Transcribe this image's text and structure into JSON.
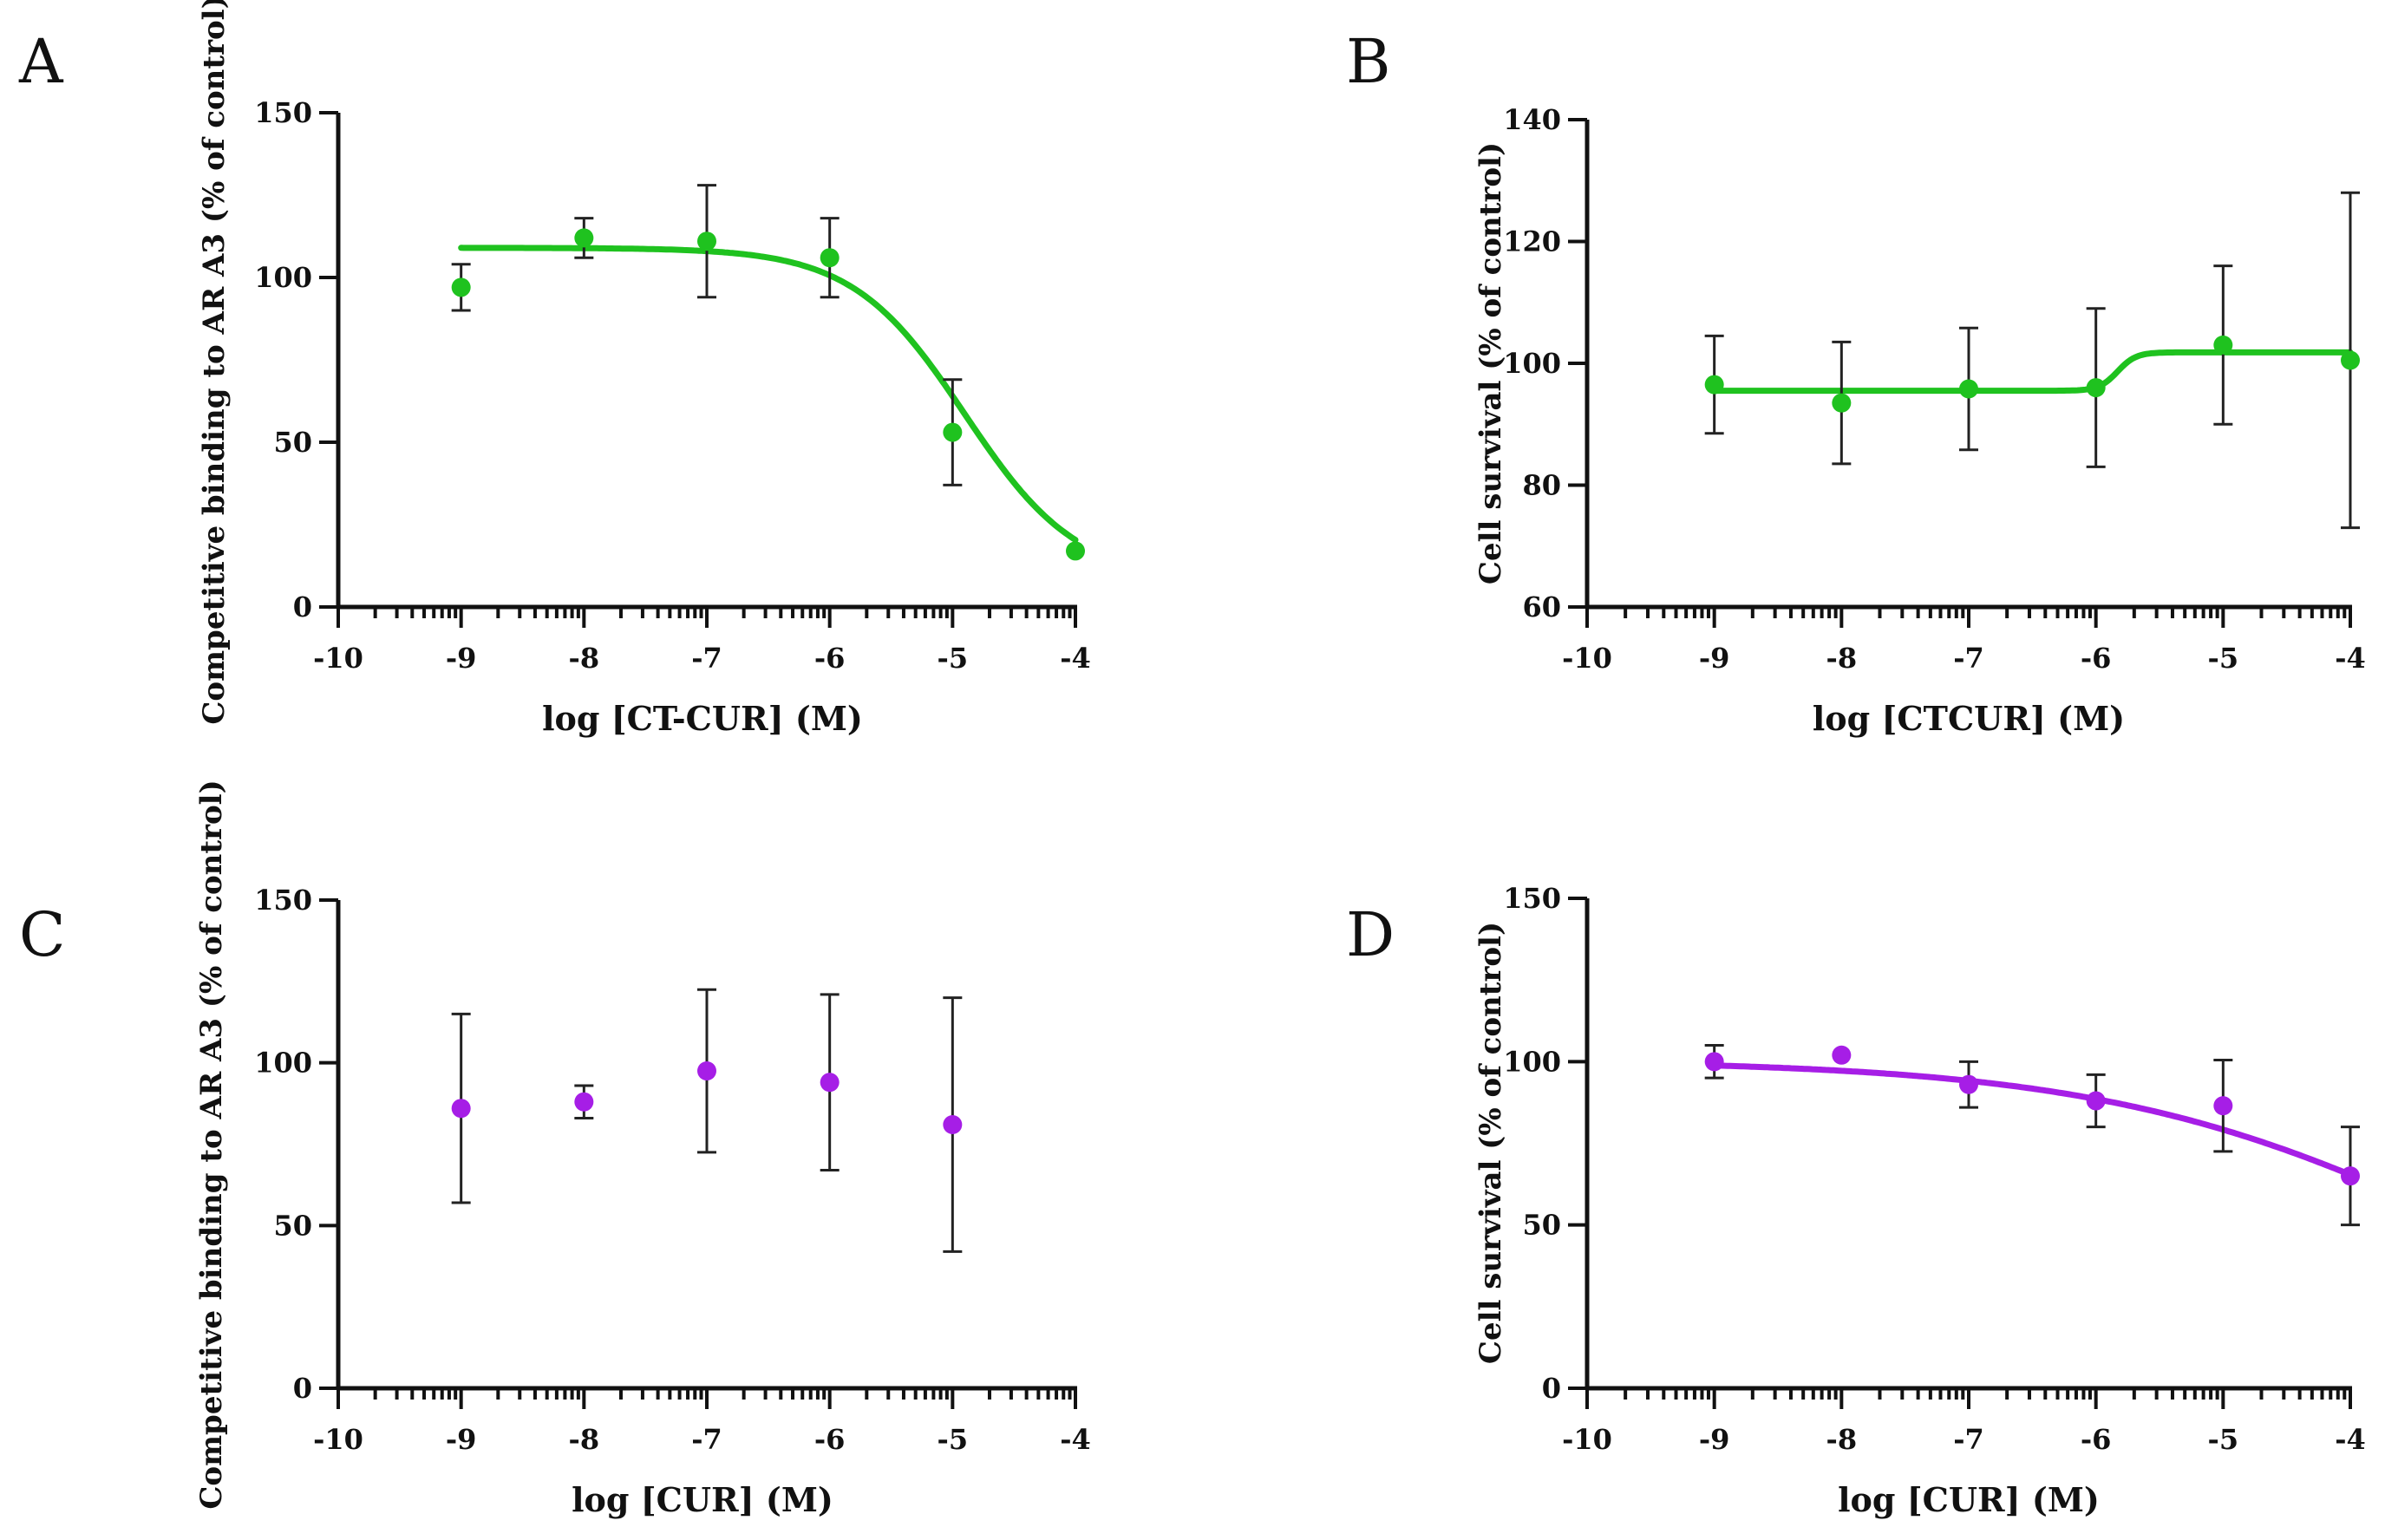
{
  "chart_data": [
    {
      "panel": "A",
      "type": "scatter",
      "xlabel": "log [CT-CUR] (M)",
      "ylabel": "Competitive binding to AR A3 (% of control)",
      "xlim": [
        -10,
        -4
      ],
      "ylim": [
        0,
        150
      ],
      "xticks": [
        -10,
        -9,
        -8,
        -7,
        -6,
        -5,
        -4
      ],
      "yticks": [
        0,
        50,
        100,
        150
      ],
      "color": "#1fc21f",
      "points": [
        {
          "x": -9,
          "y": 97,
          "err": 7
        },
        {
          "x": -8,
          "y": 112,
          "err": 6
        },
        {
          "x": -7,
          "y": 111,
          "err": 17
        },
        {
          "x": -6,
          "y": 106,
          "err": 12
        },
        {
          "x": -5,
          "y": 53,
          "err": 16
        },
        {
          "x": -4,
          "y": 17,
          "err": 0
        }
      ],
      "fit": {
        "model": "sigmoid",
        "top": 109,
        "bottom": 8,
        "logIC50": -4.9,
        "hill": 0.95,
        "xrange": [
          -9,
          -4
        ]
      }
    },
    {
      "panel": "B",
      "type": "scatter",
      "xlabel": "log [CTCUR] (M)",
      "ylabel": "Cell survival (% of control)",
      "xlim": [
        -10,
        -4
      ],
      "ylim": [
        60,
        140
      ],
      "xticks": [
        -10,
        -9,
        -8,
        -7,
        -6,
        -5,
        -4
      ],
      "yticks": [
        60,
        80,
        100,
        120,
        140
      ],
      "color": "#1fc21f",
      "points": [
        {
          "x": -9,
          "y": 96.5,
          "err": 8
        },
        {
          "x": -8,
          "y": 93.5,
          "err": 10
        },
        {
          "x": -7,
          "y": 95.8,
          "err": 10
        },
        {
          "x": -6,
          "y": 96,
          "err": 13
        },
        {
          "x": -5,
          "y": 103,
          "err": 13
        },
        {
          "x": -4,
          "y": 100.5,
          "err": 27.5
        }
      ],
      "fit": {
        "model": "sigmoid",
        "top": 95.5,
        "bottom": 101.8,
        "logIC50": -5.83,
        "hill": 6,
        "xrange": [
          -9,
          -4
        ]
      }
    },
    {
      "panel": "C",
      "type": "scatter",
      "xlabel": "log [CUR] (M)",
      "ylabel": "Competitive binding to AR A3 (% of control)",
      "xlim": [
        -10,
        -4
      ],
      "ylim": [
        0,
        150
      ],
      "xticks": [
        -10,
        -9,
        -8,
        -7,
        -6,
        -5,
        -4
      ],
      "yticks": [
        0,
        50,
        100,
        150
      ],
      "color": "#a61ee6",
      "points": [
        {
          "x": -9,
          "y": 86,
          "err": 29
        },
        {
          "x": -8,
          "y": 88,
          "err": 5
        },
        {
          "x": -7,
          "y": 97.5,
          "err": 25
        },
        {
          "x": -6,
          "y": 94,
          "err": 27
        },
        {
          "x": -5,
          "y": 81,
          "err": 39
        }
      ]
    },
    {
      "panel": "D",
      "type": "scatter",
      "xlabel": "log [CUR] (M)",
      "ylabel": "Cell survival (% of control)",
      "xlim": [
        -10,
        -4
      ],
      "ylim": [
        0,
        150
      ],
      "xticks": [
        -10,
        -9,
        -8,
        -7,
        -6,
        -5,
        -4
      ],
      "yticks": [
        0,
        50,
        100,
        150
      ],
      "color": "#a61ee6",
      "points": [
        {
          "x": -9,
          "y": 100,
          "err": 5
        },
        {
          "x": -8,
          "y": 102,
          "err": 0
        },
        {
          "x": -7,
          "y": 93,
          "err": 7
        },
        {
          "x": -6,
          "y": 88,
          "err": 8
        },
        {
          "x": -5,
          "y": 86.5,
          "err": 14
        },
        {
          "x": -4,
          "y": 65,
          "err": 15
        }
      ],
      "fit": {
        "model": "sigmoid",
        "top": 100.5,
        "bottom": 0,
        "logIC50": -3.1,
        "hill": 0.3,
        "xrange": [
          -9,
          -4
        ]
      }
    }
  ]
}
